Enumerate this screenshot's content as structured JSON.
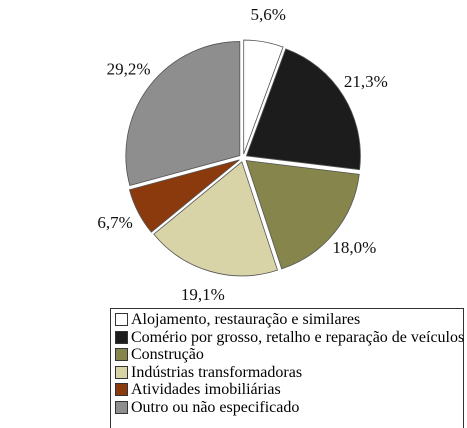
{
  "chart_data": {
    "type": "pie",
    "categories": [
      "Alojamento, restauração e similares",
      "Comério por grosso, retalho e reparação de veículos",
      "Construção",
      "Indústrias transformadoras",
      "Atividades imobiliárias",
      "Outro ou não especificado"
    ],
    "values": [
      5.6,
      21.3,
      18.0,
      19.1,
      6.7,
      29.2
    ],
    "value_labels": [
      "5,6%",
      "21,3%",
      "18,0%",
      "19,1%",
      "6,7%",
      "29,2%"
    ],
    "colors": [
      "#ffffff",
      "#1c1c1c",
      "#85854c",
      "#d9d4a8",
      "#8a3a0c",
      "#8e8e8e"
    ]
  }
}
